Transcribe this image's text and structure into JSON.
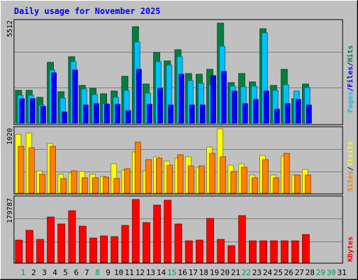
{
  "chart_data": {
    "type": "bar",
    "title": "Daily usage for November 2025",
    "categories": [
      "1",
      "2",
      "3",
      "4",
      "5",
      "6",
      "7",
      "8",
      "9",
      "10",
      "11",
      "12",
      "13",
      "14",
      "15",
      "16",
      "17",
      "18",
      "19",
      "20",
      "21",
      "22",
      "23",
      "24",
      "25",
      "26",
      "27",
      "28",
      "29",
      "30",
      "31"
    ],
    "weekend_days": [
      "1",
      "8",
      "15",
      "22",
      "29",
      "30"
    ],
    "panels": [
      {
        "id": "top",
        "ymax": 5512,
        "ymax_label": "5512",
        "ylabel_parts": [
          {
            "text": "Pages",
            "color": "#00c0ff"
          },
          {
            "text": "/",
            "color": "#000080"
          },
          {
            "text": "Files",
            "color": "#0000ff"
          },
          {
            "text": "/",
            "color": "#000080"
          },
          {
            "text": "Hits",
            "color": "#008040"
          }
        ],
        "series": [
          {
            "name": "Hits",
            "color": "#008040",
            "values": [
              1780,
              1780,
              1430,
              3340,
              1730,
              3630,
              2080,
              1930,
              1620,
              1760,
              2550,
              5270,
              2140,
              3850,
              3410,
              4020,
              2720,
              2680,
              2940,
              5490,
              2220,
              2700,
              2270,
              5170,
              2080,
              2930,
              1330,
              2150,
              0,
              0,
              0
            ]
          },
          {
            "name": "Files",
            "color": "#00c0ff",
            "values": [
              1550,
              1550,
              980,
              2890,
              1380,
              3360,
              1860,
              1570,
              1090,
              1420,
              1800,
              4440,
              1630,
              3350,
              3180,
              3630,
              2350,
              2190,
              2110,
              4220,
              2030,
              2000,
              2040,
              4940,
              1780,
              2090,
              1750,
              1960,
              0,
              0,
              0
            ]
          },
          {
            "name": "Pages",
            "color": "#0000ff",
            "values": [
              1350,
              1350,
              900,
              2750,
              620,
              2890,
              990,
              1070,
              1030,
              1050,
              700,
              2960,
              1040,
              1910,
              990,
              2680,
              1010,
              1010,
              2610,
              2840,
              1760,
              1080,
              1310,
              1760,
              750,
              1080,
              1300,
              1000,
              0,
              0,
              0
            ]
          }
        ]
      },
      {
        "id": "middle",
        "ymax": 1020,
        "ymax_label": "1020",
        "ylabel_parts": [
          {
            "text": "Sites",
            "color": "#ff8000"
          },
          {
            "text": "/",
            "color": "#000080"
          },
          {
            "text": "Visits",
            "color": "#ffff00"
          }
        ],
        "series": [
          {
            "name": "Visits",
            "color": "#ffff00",
            "values": [
              940,
              960,
              360,
              800,
              300,
              320,
              350,
              300,
              270,
              470,
              370,
              660,
              360,
              580,
              510,
              560,
              580,
              410,
              740,
              1030,
              450,
              470,
              290,
              610,
              290,
              590,
              290,
              380,
              0,
              0,
              0
            ]
          },
          {
            "name": "Sites",
            "color": "#ff8000",
            "values": [
              750,
              730,
              300,
              750,
              240,
              360,
              250,
              250,
              260,
              240,
              390,
              820,
              540,
              560,
              450,
              620,
              440,
              440,
              640,
              580,
              350,
              410,
              250,
              540,
              250,
              640,
              290,
              290,
              0,
              0,
              0
            ]
          }
        ]
      },
      {
        "id": "bottom",
        "ymax": 179787,
        "ymax_label": "179787",
        "ylabel_parts": [
          {
            "text": "KBytes",
            "color": "#ff0000"
          }
        ],
        "series": [
          {
            "name": "KBytes",
            "color": "#ff0000",
            "values": [
              63000,
              90000,
              66000,
              129000,
              108000,
              146000,
              103000,
              70000,
              75000,
              74000,
              105000,
              178000,
              113000,
              162000,
              175000,
              108000,
              62000,
              64000,
              125000,
              65000,
              48000,
              132000,
              61000,
              62000,
              61000,
              61000,
              61000,
              80000,
              0,
              0,
              0
            ]
          }
        ]
      }
    ]
  }
}
